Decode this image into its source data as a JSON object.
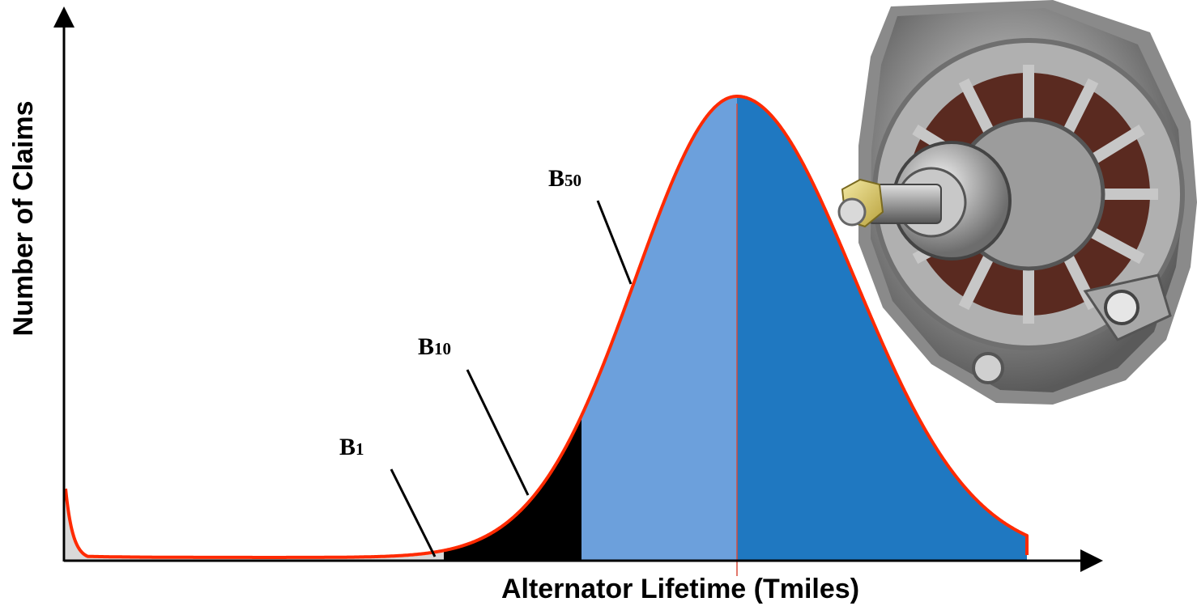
{
  "chart_data": {
    "type": "area",
    "xlabel": "Alternator Lifetime (Tmiles)",
    "ylabel": "Number of Claims",
    "annotations": [
      {
        "main": "B",
        "sub": "1"
      },
      {
        "main": "B",
        "sub": "10"
      },
      {
        "main": "B",
        "sub": "50"
      }
    ],
    "regions": [
      {
        "id": "early-failures",
        "color": "#d9d9d9"
      },
      {
        "id": "b1-b10",
        "color": "#000000"
      },
      {
        "id": "b10-b50",
        "color": "#6ca0dc"
      },
      {
        "id": "beyond-b50",
        "color": "#1f78c1"
      }
    ],
    "curve_color": "#ff2a00",
    "picture": "alternator-photo"
  }
}
